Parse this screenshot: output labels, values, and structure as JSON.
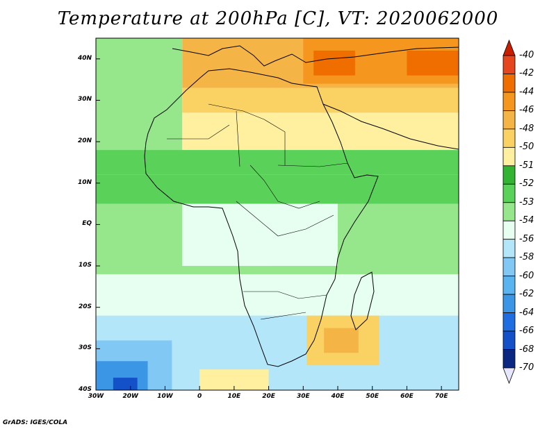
{
  "title": "Temperature at 200hPa [C], VT: 2020062000",
  "credit": "GrADS: IGES/COLA",
  "lat_labels": [
    "40N",
    "30N",
    "20N",
    "10N",
    "EQ",
    "10S",
    "20S",
    "30S",
    "40S"
  ],
  "lon_labels": [
    "30W",
    "20W",
    "10W",
    "0",
    "10E",
    "20E",
    "30E",
    "40E",
    "50E",
    "60E",
    "70E"
  ],
  "colorbar": {
    "labels": [
      "-40",
      "-42",
      "-44",
      "-46",
      "-48",
      "-50",
      "-51",
      "-52",
      "-53",
      "-54",
      "-56",
      "-58",
      "-60",
      "-62",
      "-64",
      "-66",
      "-68",
      "-70"
    ],
    "colors": [
      "#c81e00",
      "#e6461e",
      "#f06e00",
      "#f5961e",
      "#f5b446",
      "#fad264",
      "#fff0a0",
      "#32b432",
      "#5ad25a",
      "#96e68c",
      "#e6fff0",
      "#b4e6fa",
      "#82c8f5",
      "#5ab4f0",
      "#3c96e6",
      "#1e6ee1",
      "#1450c8",
      "#0a2882",
      "#e6e6ff"
    ],
    "top_arrow_color": "#c81e00",
    "bottom_arrow_color": "#e6e6ff"
  },
  "chart_data": {
    "type": "heatmap",
    "variable": "Temperature at 200hPa",
    "units": "C",
    "valid_time": "2020062000",
    "lon_range": [
      -30,
      75
    ],
    "lat_range": [
      -40,
      45
    ],
    "value_range": [
      -70,
      -40
    ],
    "regions": [
      {
        "lon": [
          -30,
          75
        ],
        "lat": [
          -12,
          5
        ],
        "value": -53.5
      },
      {
        "lon": [
          -30,
          75
        ],
        "lat": [
          -22,
          -12
        ],
        "value": -54
      },
      {
        "lon": [
          -30,
          75
        ],
        "lat": [
          -40,
          -22
        ],
        "value": -56
      },
      {
        "lon": [
          -30,
          75
        ],
        "lat": [
          5,
          12
        ],
        "value": -52
      },
      {
        "lon": [
          -30,
          75
        ],
        "lat": [
          12,
          18
        ],
        "value": -52.5
      },
      {
        "lon": [
          -30,
          -5
        ],
        "lat": [
          18,
          45
        ],
        "value": -53
      },
      {
        "lon": [
          -5,
          75
        ],
        "lat": [
          18,
          27
        ],
        "value": -50
      },
      {
        "lon": [
          -5,
          75
        ],
        "lat": [
          27,
          33
        ],
        "value": -48
      },
      {
        "lon": [
          -5,
          75
        ],
        "lat": [
          33,
          45
        ],
        "value": -46
      },
      {
        "lon": [
          -30,
          -8
        ],
        "lat": [
          -40,
          -28
        ],
        "value": -58
      },
      {
        "lon": [
          -30,
          -15
        ],
        "lat": [
          -40,
          -33
        ],
        "value": -62
      },
      {
        "lon": [
          -25,
          -18
        ],
        "lat": [
          -40,
          -37
        ],
        "value": -66
      },
      {
        "lon": [
          10,
          40
        ],
        "lat": [
          -10,
          5
        ],
        "value": -55
      },
      {
        "lon": [
          -5,
          20
        ],
        "lat": [
          -10,
          5
        ],
        "value": -54
      },
      {
        "lon": [
          31,
          52
        ],
        "lat": [
          -34,
          -22
        ],
        "value": -48
      },
      {
        "lon": [
          36,
          46
        ],
        "lat": [
          -31,
          -25
        ],
        "value": -46
      },
      {
        "lon": [
          0,
          20
        ],
        "lat": [
          -40,
          -35
        ],
        "value": -50
      },
      {
        "lon": [
          30,
          75
        ],
        "lat": [
          34,
          45
        ],
        "value": -44
      },
      {
        "lon": [
          33,
          45
        ],
        "lat": [
          36,
          42
        ],
        "value": -42
      },
      {
        "lon": [
          60,
          75
        ],
        "lat": [
          36,
          42
        ],
        "value": -43
      }
    ]
  }
}
